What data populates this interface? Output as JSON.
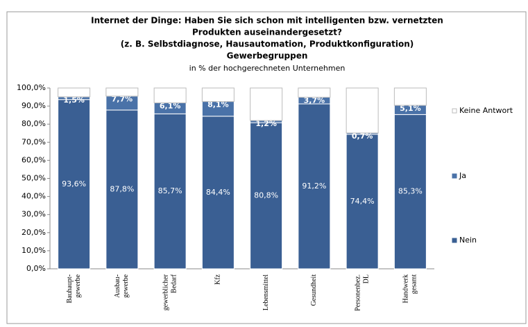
{
  "chart_data": {
    "type": "stacked_bar",
    "title": [
      "Internet der Dinge: Haben Sie sich schon mit intelligenten bzw. vernetzten",
      "Produkten auseinandergesetzt?",
      "(z. B. Selbstdiagnose, Hausautomation, Produktkonfiguration)",
      "Gewerbegruppen"
    ],
    "subtitle": "in % der hochgerechneten Unternehmen",
    "categories": [
      [
        "Bauhaupt-",
        "gewerbe"
      ],
      [
        "Ausbau-",
        "gewerbe"
      ],
      [
        "gewerblicher",
        "Bedarf"
      ],
      [
        "Kfz"
      ],
      [
        "Lebensmittel"
      ],
      [
        "Gesundheit"
      ],
      [
        "Personenbez.",
        "DL"
      ],
      [
        "Handwerk",
        "gesamt"
      ]
    ],
    "series": [
      {
        "name": "Nein",
        "color": "#3a5f93",
        "values": [
          93.6,
          87.8,
          85.7,
          84.4,
          80.8,
          91.2,
          74.4,
          85.3
        ],
        "value_labels": [
          "93,6%",
          "87,8%",
          "85,7%",
          "84,4%",
          "80,8%",
          "91,2%",
          "74,4%",
          "85,3%"
        ]
      },
      {
        "name": "Ja",
        "color": "#4a72a8",
        "values": [
          1.5,
          7.7,
          6.1,
          8.1,
          1.2,
          3.7,
          0.7,
          5.1
        ],
        "value_labels": [
          "1,5%",
          "7,7%",
          "6,1%",
          "8,1%",
          "1,2%",
          "3,7%",
          "0,7%",
          "5,1%"
        ]
      },
      {
        "name": "Keine Antwort",
        "color": "#ffffff",
        "values": [
          4.9,
          4.5,
          8.2,
          7.5,
          18.0,
          5.1,
          24.9,
          9.6
        ]
      }
    ],
    "ylim": [
      0,
      100
    ],
    "yticks": [
      {
        "value": 0,
        "label": "0,0%"
      },
      {
        "value": 10,
        "label": "10,0%"
      },
      {
        "value": 20,
        "label": "20,0%"
      },
      {
        "value": 30,
        "label": "30,0%"
      },
      {
        "value": 40,
        "label": "40,0%"
      },
      {
        "value": 50,
        "label": "50,0%"
      },
      {
        "value": 60,
        "label": "60,0%"
      },
      {
        "value": 70,
        "label": "70,0%"
      },
      {
        "value": 80,
        "label": "80,0%"
      },
      {
        "value": 90,
        "label": "90,0%"
      },
      {
        "value": 100,
        "label": "100,0%"
      }
    ],
    "grid": false,
    "legend": "right"
  }
}
